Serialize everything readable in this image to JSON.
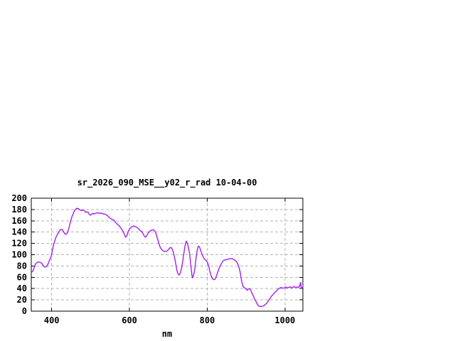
{
  "page": {
    "background": "#ffffff"
  },
  "chart": {
    "title": "sr_2026_090_MSE__y02_r_rad 10-04-00",
    "xlabel": "nm"
  },
  "chart_data": {
    "type": "line",
    "title": "sr_2026_090_MSE__y02_r_rad 10-04-00",
    "xlabel": "nm",
    "ylabel": "",
    "xlim": [
      347.5,
      1046
    ],
    "ylim": [
      0,
      200
    ],
    "xticks": [
      400,
      600,
      800,
      1000
    ],
    "yticks": [
      0,
      20,
      40,
      60,
      80,
      100,
      120,
      140,
      160,
      180,
      200
    ],
    "grid": true,
    "grid_style": "dashed",
    "legend": "none",
    "background": "#ffffff",
    "axis_color": "#000000",
    "text_color": "#000000",
    "grid_color": "#b2b2b2",
    "series": [
      {
        "name": "sr_2026_090_MSE__y02_r_rad",
        "color": "#a020f0",
        "x": [
          347,
          350,
          353,
          356,
          359,
          362,
          365,
          368,
          371,
          374,
          377,
          380,
          383,
          386,
          389,
          392,
          395,
          398,
          400,
          402,
          404,
          407,
          410,
          413,
          416,
          419,
          422,
          425,
          428,
          431,
          434,
          437,
          440,
          443,
          446,
          449,
          452,
          455,
          458,
          461,
          464,
          467,
          470,
          473,
          476,
          479,
          482,
          485,
          488,
          491,
          494,
          497,
          500,
          503,
          506,
          509,
          512,
          515,
          518,
          521,
          524,
          527,
          530,
          533,
          536,
          539,
          542,
          545,
          548,
          551,
          554,
          557,
          560,
          563,
          566,
          569,
          572,
          575,
          578,
          581,
          584,
          587,
          590,
          593,
          596,
          599,
          602,
          605,
          608,
          611,
          614,
          617,
          620,
          623,
          626,
          629,
          632,
          635,
          638,
          641,
          644,
          647,
          650,
          653,
          656,
          659,
          662,
          665,
          668,
          671,
          674,
          677,
          680,
          683,
          686,
          689,
          692,
          695,
          698,
          701,
          704,
          707,
          710,
          713,
          716,
          719,
          722,
          725,
          728,
          731,
          734,
          737,
          740,
          743,
          746,
          749,
          752,
          755,
          758,
          761,
          763,
          765,
          768,
          771,
          774,
          777,
          780,
          783,
          786,
          789,
          792,
          795,
          798,
          801,
          804,
          807,
          810,
          813,
          816,
          819,
          822,
          825,
          828,
          831,
          834,
          837,
          840,
          843,
          846,
          849,
          852,
          855,
          858,
          861,
          864,
          867,
          870,
          873,
          876,
          879,
          882,
          885,
          888,
          891,
          894,
          897,
          900,
          903,
          906,
          909,
          912,
          915,
          918,
          921,
          924,
          927,
          930,
          933,
          936,
          939,
          942,
          945,
          948,
          951,
          954,
          957,
          960,
          963,
          966,
          969,
          972,
          975,
          978,
          981,
          984,
          987,
          990,
          993,
          996,
          999,
          1002,
          1005,
          1008,
          1011,
          1014,
          1017,
          1020,
          1023,
          1026,
          1029,
          1032,
          1035,
          1038,
          1040,
          1042,
          1044,
          1046
        ],
        "y": [
          68,
          70,
          73,
          79,
          84,
          86,
          87,
          87,
          86,
          85,
          82,
          79,
          78,
          79,
          81,
          86,
          91,
          96,
          101,
          108,
          115,
          122,
          129,
          134,
          137,
          141,
          144,
          145,
          144,
          140,
          137,
          136,
          138,
          144,
          152,
          160,
          167,
          172,
          177,
          180,
          182,
          182,
          181,
          179,
          178,
          179,
          179,
          177,
          175,
          176,
          175,
          171,
          170,
          172,
          173,
          172,
          173,
          174,
          174,
          174,
          173,
          174,
          173,
          172,
          172,
          171,
          170,
          168,
          166,
          164,
          163,
          162,
          161,
          158,
          156,
          154,
          152,
          150,
          147,
          144,
          141,
          136,
          131,
          133,
          139,
          144,
          147,
          149,
          150,
          151,
          150,
          149,
          148,
          146,
          144,
          142,
          141,
          137,
          133,
          131,
          133,
          137,
          140,
          142,
          143,
          144,
          144,
          142,
          138,
          131,
          124,
          117,
          112,
          109,
          107,
          106,
          106,
          106,
          107,
          110,
          112,
          113,
          110,
          104,
          95,
          84,
          72,
          66,
          64,
          68,
          76,
          88,
          103,
          116,
          124,
          121,
          112,
          100,
          80,
          62,
          59,
          64,
          75,
          92,
          107,
          115,
          114,
          108,
          102,
          97,
          93,
          91,
          89,
          86,
          79,
          70,
          63,
          58,
          56,
          56,
          59,
          65,
          71,
          77,
          81,
          85,
          88,
          90,
          91,
          91,
          92,
          92,
          93,
          93,
          93,
          92,
          91,
          89,
          87,
          83,
          77,
          68,
          55,
          46,
          42,
          41,
          39,
          37,
          39,
          40,
          37,
          32,
          28,
          23,
          19,
          15,
          11,
          9,
          8,
          8,
          9,
          9,
          11,
          13,
          15,
          18,
          21,
          24,
          27,
          29,
          32,
          34,
          36,
          38,
          40,
          41,
          42,
          41,
          41,
          41,
          43,
          41,
          42,
          42,
          43,
          41,
          42,
          44,
          42,
          42,
          43,
          42,
          45,
          51,
          40,
          41,
          44
        ]
      }
    ]
  }
}
